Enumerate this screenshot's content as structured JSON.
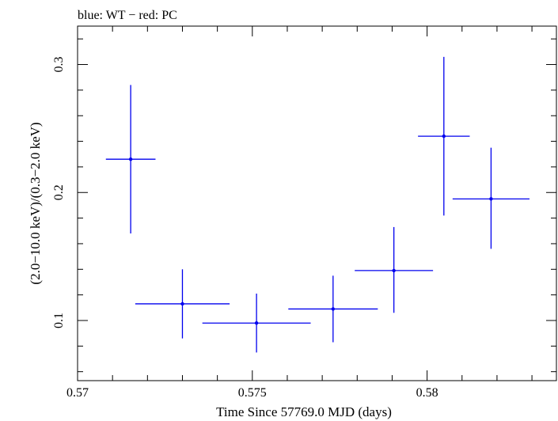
{
  "chart_data": {
    "type": "scatter",
    "title": "blue: WT − red: PC",
    "xlabel": "Time Since 57769.0 MJD (days)",
    "ylabel": "(2.0−10.0 keV)/(0.3−2.0 keV)",
    "xlim": [
      0.57,
      0.5837
    ],
    "ylim": [
      0.053,
      0.33
    ],
    "x_ticks": [
      {
        "value": 0.57,
        "label": "0.57"
      },
      {
        "value": 0.575,
        "label": "0.575"
      },
      {
        "value": 0.58,
        "label": "0.58"
      }
    ],
    "y_ticks": [
      {
        "value": 0.1,
        "label": "0.1"
      },
      {
        "value": 0.2,
        "label": "0.2"
      },
      {
        "value": 0.3,
        "label": "0.3"
      }
    ],
    "grid": false,
    "series": [
      {
        "color": "#0000ee",
        "points": [
          {
            "x": 0.57152,
            "y": 0.226,
            "xerr_low": 0.00071,
            "xerr_high": 0.00071,
            "y_low": 0.168,
            "y_high": 0.284
          },
          {
            "x": 0.573,
            "y": 0.113,
            "xerr_low": 0.00135,
            "xerr_high": 0.00135,
            "y_low": 0.086,
            "y_high": 0.14
          },
          {
            "x": 0.57512,
            "y": 0.098,
            "xerr_low": 0.00155,
            "xerr_high": 0.00155,
            "y_low": 0.075,
            "y_high": 0.121
          },
          {
            "x": 0.57731,
            "y": 0.109,
            "xerr_low": 0.00128,
            "xerr_high": 0.00128,
            "y_low": 0.083,
            "y_high": 0.135
          },
          {
            "x": 0.57905,
            "y": 0.139,
            "xerr_low": 0.00112,
            "xerr_high": 0.00112,
            "y_low": 0.106,
            "y_high": 0.173
          },
          {
            "x": 0.58048,
            "y": 0.244,
            "xerr_low": 0.00074,
            "xerr_high": 0.00074,
            "y_low": 0.182,
            "y_high": 0.306
          },
          {
            "x": 0.58183,
            "y": 0.195,
            "xerr_low": 0.0011,
            "xerr_high": 0.0011,
            "y_low": 0.156,
            "y_high": 0.235
          }
        ]
      }
    ]
  }
}
